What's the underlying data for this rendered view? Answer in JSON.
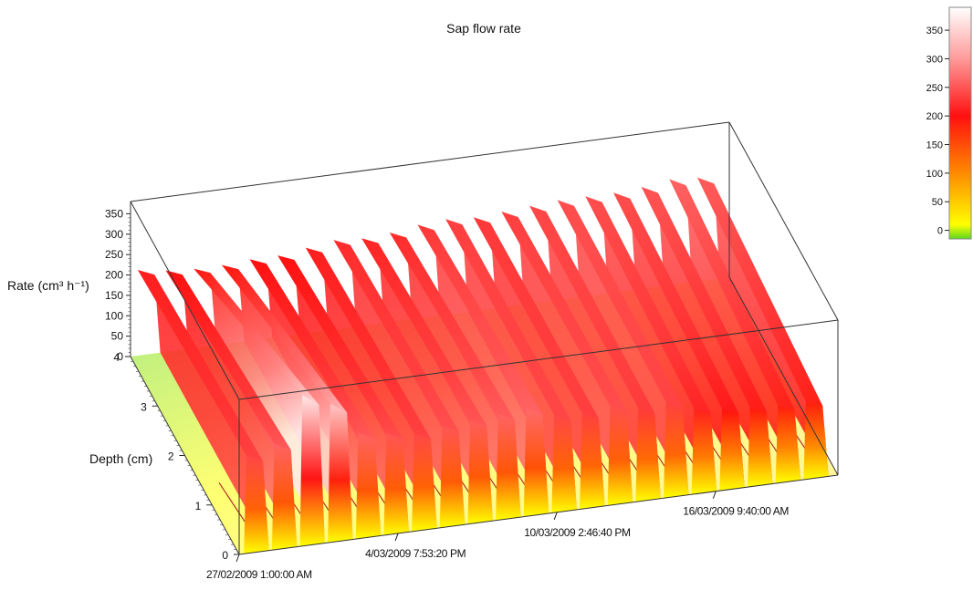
{
  "chart_data": {
    "type": "surface",
    "title": "Sap flow rate",
    "zlabel": "Rate (cm³ h⁻¹)",
    "ylabel": "Depth (cm)",
    "xlabel": "",
    "rate_ticks": [
      0,
      50,
      100,
      150,
      200,
      250,
      300,
      350
    ],
    "rate_range": [
      0,
      380
    ],
    "depth_ticks": [
      0,
      1,
      2,
      3,
      4
    ],
    "depth_range": [
      0,
      4
    ],
    "date_ticks": [
      "27/02/2009 1:00:00 AM",
      "4/03/2009 7:53:20 PM",
      "10/03/2009 2:46:40 PM",
      "16/03/2009 9:40:00 AM"
    ],
    "start_date": "27/02/2009",
    "day_count": 21,
    "peak_rates_by_day": [
      210,
      200,
      195,
      195,
      200,
      200,
      210,
      220,
      215,
      220,
      230,
      235,
      230,
      235,
      240,
      245,
      245,
      245,
      250,
      260,
      255
    ],
    "front_peak_rates_by_day": [
      240,
      260,
      370,
      340,
      260,
      250,
      240,
      250,
      255,
      260,
      265,
      240,
      235,
      245,
      230,
      235,
      210,
      200,
      195,
      190,
      190
    ],
    "colorbar": {
      "ticks": [
        0,
        50,
        100,
        150,
        200,
        250,
        300,
        350
      ],
      "range": [
        -15,
        390
      ],
      "stops": [
        {
          "value": -15,
          "color": "#5cd81f"
        },
        {
          "value": 10,
          "color": "#ffff00"
        },
        {
          "value": 100,
          "color": "#ff8a00"
        },
        {
          "value": 200,
          "color": "#ff1010"
        },
        {
          "value": 300,
          "color": "#ff9a9a"
        },
        {
          "value": 390,
          "color": "#ffffff"
        }
      ]
    }
  }
}
